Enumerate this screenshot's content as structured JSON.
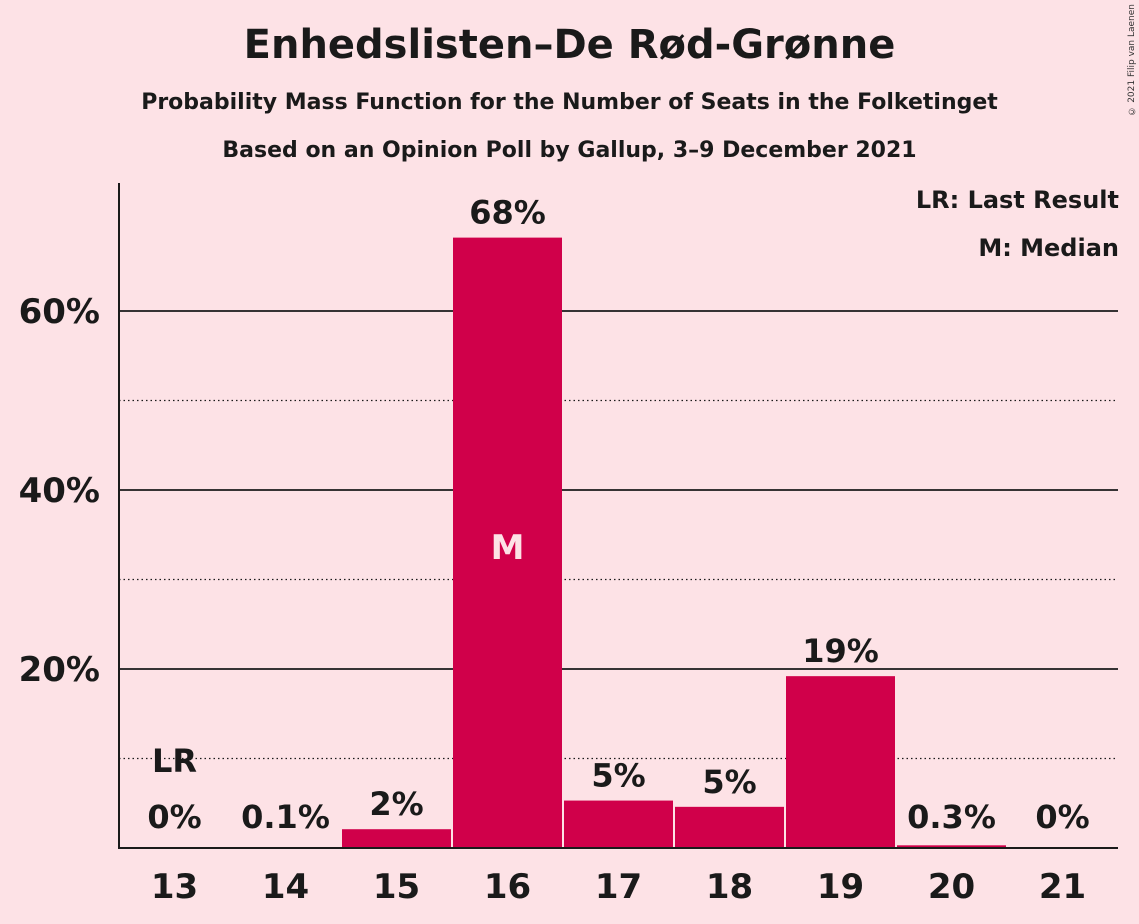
{
  "title": "Enhedslisten–De Rød-Grønne",
  "subtitle": "Probability Mass Function for the Number of Seats in the Folketinget",
  "subtitle2": "Based on an Opinion Poll by Gallup, 3–9 December 2021",
  "copyright": "© 2021 Filip van Laenen",
  "legend": {
    "last_result": "LR: Last Result",
    "median": "M: Median"
  },
  "colors": {
    "background": "#fde2e6",
    "bar": "#d0004a",
    "text": "#1a1a1a"
  },
  "chart_data": {
    "type": "bar",
    "categories": [
      "13",
      "14",
      "15",
      "16",
      "17",
      "18",
      "19",
      "20",
      "21"
    ],
    "values": [
      0,
      0.1,
      2.1,
      68.2,
      5.3,
      4.6,
      19.2,
      0.3,
      0
    ],
    "data_labels": [
      "0%",
      "0.1%",
      "2%",
      "68%",
      "5%",
      "5%",
      "19%",
      "0.3%",
      "0%"
    ],
    "y_ticks": [
      20,
      40,
      60
    ],
    "y_tick_labels": [
      "20%",
      "40%",
      "60%"
    ],
    "y_minor_ticks": [
      10,
      30,
      50
    ],
    "ylim": [
      0,
      75
    ],
    "last_result_category": "13",
    "last_result_marker": "LR",
    "median_category": "16",
    "median_marker": "M",
    "grid": true
  }
}
